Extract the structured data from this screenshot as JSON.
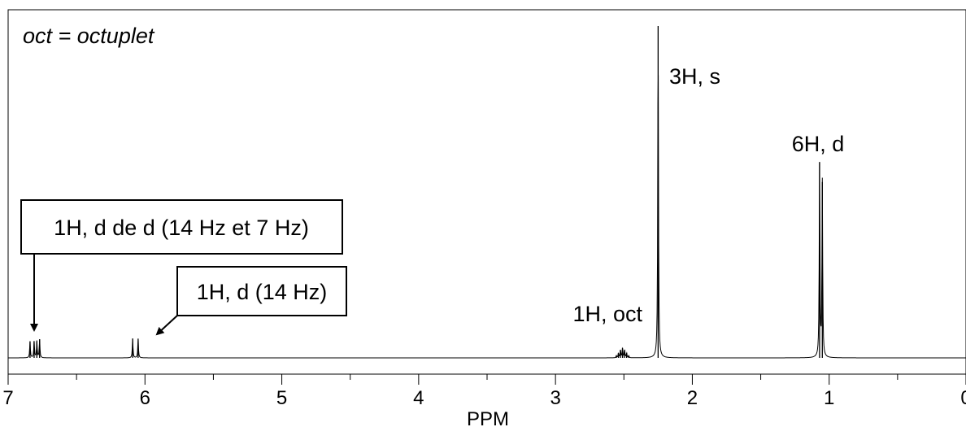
{
  "chart_data": {
    "type": "line",
    "title": "",
    "xlabel": "PPM",
    "ylabel": "",
    "x_reversed": true,
    "xlim": [
      7,
      0
    ],
    "ylim": [
      0,
      1
    ],
    "grid": false,
    "ticks": {
      "major": [
        7,
        6,
        5,
        4,
        3,
        2,
        1,
        0
      ],
      "major_labels": [
        "7",
        "6",
        "5",
        "4",
        "3",
        "2",
        "1",
        "0"
      ],
      "minor": [
        6.5,
        5.5,
        4.5,
        3.5,
        2.5,
        1.5,
        0.5
      ]
    },
    "note": "oct = octuplet",
    "peaks": [
      {
        "ppm": 6.84,
        "height": 0.05
      },
      {
        "ppm": 6.81,
        "height": 0.05
      },
      {
        "ppm": 6.79,
        "height": 0.05
      },
      {
        "ppm": 6.77,
        "height": 0.056
      },
      {
        "ppm": 6.09,
        "height": 0.058
      },
      {
        "ppm": 6.05,
        "height": 0.058
      },
      {
        "ppm": 2.555,
        "height": 0.006
      },
      {
        "ppm": 2.54,
        "height": 0.014
      },
      {
        "ppm": 2.525,
        "height": 0.024
      },
      {
        "ppm": 2.51,
        "height": 0.03
      },
      {
        "ppm": 2.495,
        "height": 0.024
      },
      {
        "ppm": 2.48,
        "height": 0.014
      },
      {
        "ppm": 2.465,
        "height": 0.006
      },
      {
        "ppm": 2.25,
        "height": 1.0
      },
      {
        "ppm": 1.07,
        "height": 0.59
      },
      {
        "ppm": 1.05,
        "height": 0.53
      }
    ],
    "annotations": [
      {
        "text": "3H, s",
        "ppm": 2.25
      },
      {
        "text": "6H, d",
        "ppm": 1.06
      },
      {
        "text": "1H, oct",
        "ppm": 2.51
      },
      {
        "text": "1H, d de d (14 Hz et 7 Hz)",
        "ppm": 6.8,
        "boxed": true,
        "arrow": true
      },
      {
        "text": "1H, d (14 Hz)",
        "ppm": 6.07,
        "boxed": true,
        "arrow": true
      }
    ]
  }
}
